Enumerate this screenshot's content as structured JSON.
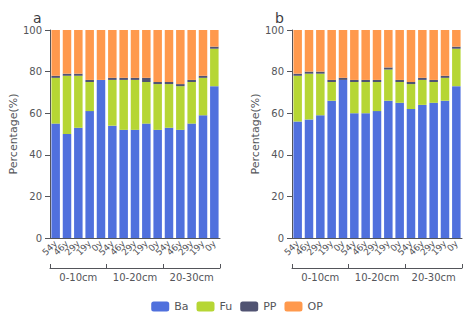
{
  "chart_data": [
    {
      "type": "bar",
      "title": "a",
      "stacked": true,
      "grid": false,
      "legend": "bottom",
      "ylabel": "Percentage(%)",
      "categories": [
        "54y",
        "46y",
        "29y",
        "19y",
        "0y",
        "54y",
        "46y",
        "29y",
        "19y",
        "0y",
        "54y",
        "46y",
        "29y",
        "19y",
        "0y"
      ],
      "annotations": [
        "0-10cm",
        "10-20cm",
        "20-30cm"
      ],
      "series": [
        {
          "name": "Ba",
          "values": [
            55,
            50,
            53,
            61,
            76,
            54,
            52,
            52,
            55,
            52,
            53,
            52,
            55,
            59,
            73
          ]
        },
        {
          "name": "Fu",
          "values": [
            22,
            28,
            25,
            14,
            0,
            22,
            24,
            24,
            20,
            22,
            21,
            21,
            20,
            18,
            18
          ]
        },
        {
          "name": "PP",
          "values": [
            1,
            1,
            1,
            1,
            0,
            1,
            1,
            1,
            2,
            1,
            1,
            1,
            1,
            1,
            1
          ]
        },
        {
          "name": "OP",
          "values": [
            22,
            21,
            21,
            24,
            24,
            23,
            23,
            23,
            23,
            25,
            25,
            26,
            24,
            22,
            8
          ]
        }
      ],
      "ylim": [
        0,
        100
      ],
      "yticks": [
        0,
        20,
        40,
        60,
        80,
        100
      ]
    },
    {
      "type": "bar",
      "title": "b",
      "stacked": true,
      "grid": false,
      "legend": "bottom",
      "ylabel": "Percentage(%)",
      "categories": [
        "54y",
        "46y",
        "29y",
        "19y",
        "0y",
        "54y",
        "46y",
        "29y",
        "19y",
        "0y",
        "54y",
        "46y",
        "29y",
        "19y",
        "0y"
      ],
      "annotations": [
        "0-10cm",
        "10-20cm",
        "20-30cm"
      ],
      "series": [
        {
          "name": "Ba",
          "values": [
            56,
            57,
            59,
            66,
            76,
            60,
            60,
            61,
            66,
            65,
            62,
            64,
            65,
            66,
            73
          ]
        },
        {
          "name": "Fu",
          "values": [
            22,
            22,
            20,
            9,
            0,
            15,
            15,
            14,
            15,
            10,
            12,
            12,
            10,
            11,
            18
          ]
        },
        {
          "name": "PP",
          "values": [
            1,
            1,
            1,
            1,
            1,
            1,
            1,
            1,
            1,
            1,
            1,
            1,
            1,
            1,
            1
          ]
        },
        {
          "name": "OP",
          "values": [
            21,
            20,
            20,
            24,
            23,
            24,
            24,
            24,
            18,
            24,
            25,
            23,
            24,
            22,
            8
          ]
        }
      ],
      "ylim": [
        0,
        100
      ],
      "yticks": [
        0,
        20,
        40,
        60,
        80,
        100
      ]
    }
  ]
}
